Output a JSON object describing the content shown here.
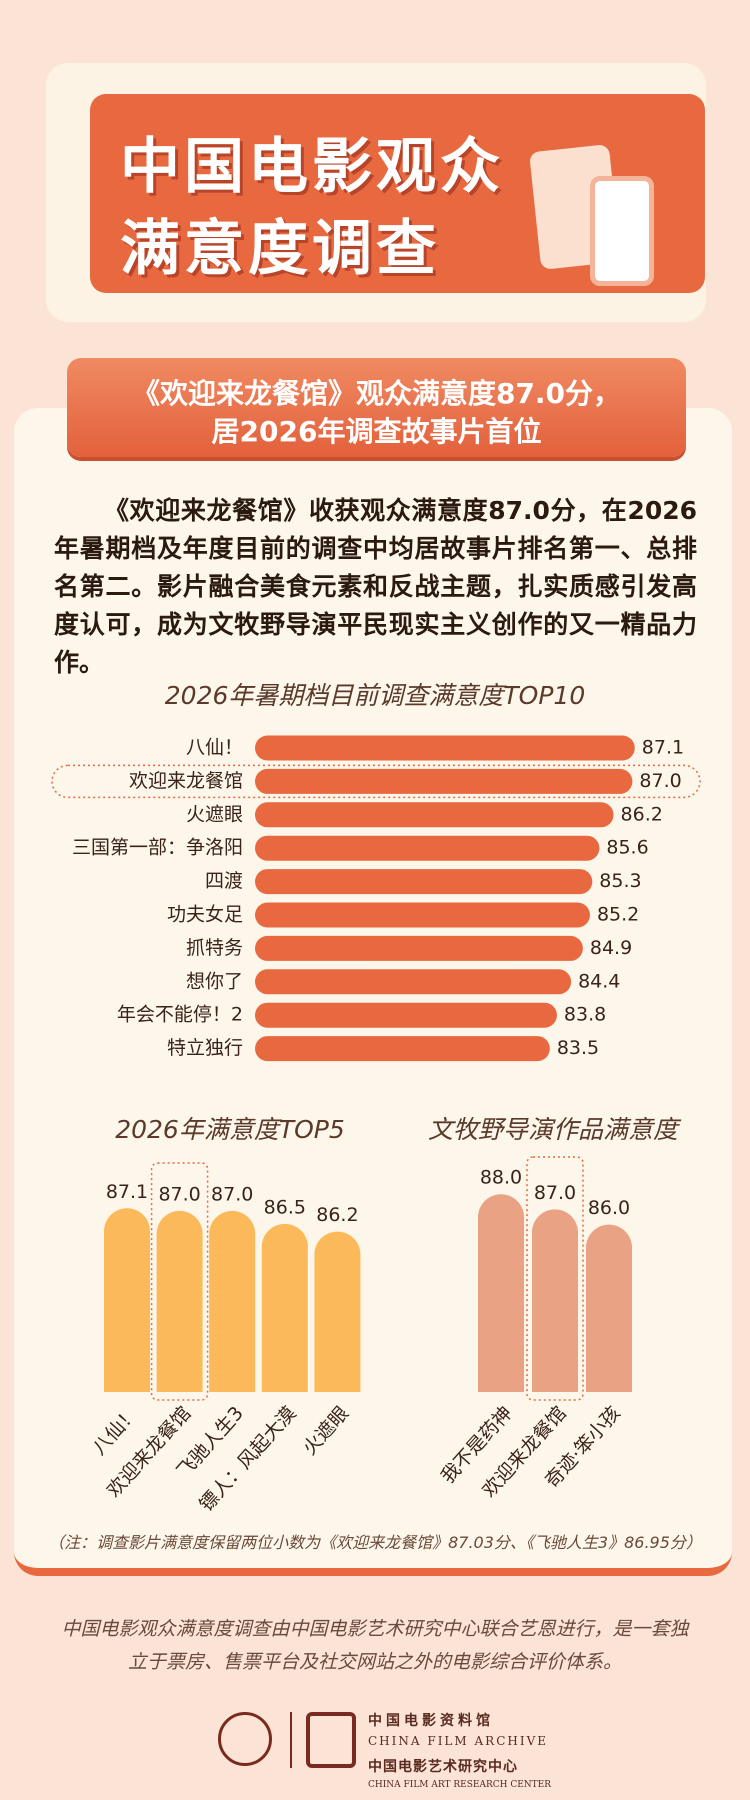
{
  "header": {
    "title_lines": [
      "中国电影观众",
      "满意度调查"
    ]
  },
  "headline": {
    "lines": [
      "《欢迎来龙餐馆》观众满意度87.0分，",
      "居2026年调查故事片首位"
    ]
  },
  "paragraph": "《欢迎来龙餐馆》收获观众满意度87.0分，在2026年暑期档及年度目前的调查中均居故事片排名第一、总排名第二。影片融合美食元素和反战主题，扎实质感引发高度认可，成为文牧野导演平民现实主义创作的又一精品力作。",
  "chart_data": [
    {
      "type": "barh",
      "title": "2026年暑期档目前调查满意度TOP10",
      "categories": [
        "八仙！",
        "欢迎来龙餐馆",
        "火遮眼",
        "三国第一部：争洛阳",
        "四渡",
        "功夫女足",
        "抓特务",
        "想你了",
        "年会不能停！2",
        "特立独行"
      ],
      "values": [
        87.1,
        87.0,
        86.2,
        85.6,
        85.3,
        85.2,
        84.9,
        84.4,
        83.8,
        83.5
      ],
      "value_labels": [
        "87.1",
        "87.0",
        "86.2",
        "85.6",
        "85.3",
        "85.2",
        "84.9",
        "84.4",
        "83.8",
        "83.5"
      ],
      "xlim": [
        71,
        88
      ],
      "color": "#e8683f",
      "highlight": "欢迎来龙餐馆"
    },
    {
      "type": "bar",
      "title": "2026年满意度TOP5",
      "categories": [
        "八仙！",
        "欢迎来龙餐馆",
        "飞驰人生3",
        "镖人：风起大漠",
        "火遮眼"
      ],
      "values": [
        87.1,
        87.0,
        87.0,
        86.5,
        86.2
      ],
      "value_labels": [
        "87.1",
        "87.0",
        "87.0",
        "86.5",
        "86.2"
      ],
      "ylim": [
        80,
        88
      ],
      "color": "#fcb95a",
      "highlight": "欢迎来龙餐馆"
    },
    {
      "type": "bar",
      "title": "文牧野导演作品满意度",
      "categories": [
        "我不是药神",
        "欢迎来龙餐馆",
        "奇迹·笨小孩"
      ],
      "values": [
        88.0,
        87.0,
        86.0
      ],
      "value_labels": [
        "88.0",
        "87.0",
        "86.0"
      ],
      "ylim": [
        75,
        89
      ],
      "color": "#e9a283",
      "highlight": "欢迎来龙餐馆"
    }
  ],
  "note": "（注：调查影片满意度保留两位小数为《欢迎来龙餐馆》87.03分、《飞驰人生3》86.95分）",
  "footer": {
    "lines": [
      "中国电影观众满意度调查由中国电影艺术研究中心联合艺恩进行，是一套独",
      "立于票房、售票平台及社交网站之外的电影综合评价体系。"
    ]
  },
  "logos": {
    "org1_cn": "中国电影资料馆",
    "org1_en": "CHINA FILM ARCHIVE",
    "org2_cn": "中国电影艺术研究中心",
    "org2_en": "CHINA FILM ART RESEARCH CENTER"
  }
}
